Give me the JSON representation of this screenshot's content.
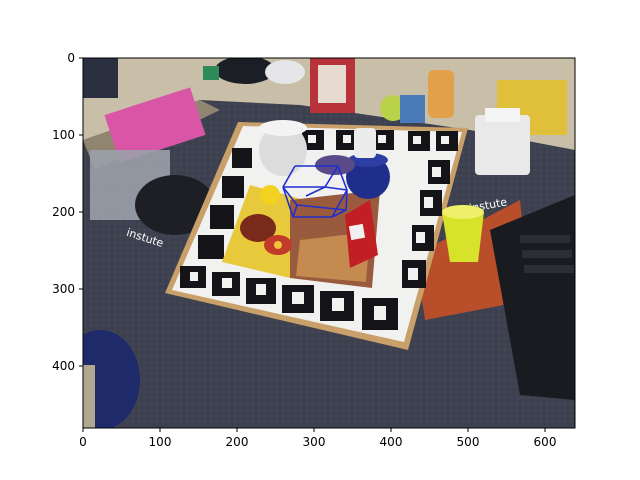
{
  "figure": {
    "x_ticks": [
      "0",
      "100",
      "200",
      "300",
      "400",
      "500",
      "600"
    ],
    "y_ticks": [
      "0",
      "100",
      "200",
      "300",
      "400"
    ],
    "box_color": "#1f2fd0"
  },
  "scene": {
    "box_label": "instute",
    "book_label": "instute"
  }
}
